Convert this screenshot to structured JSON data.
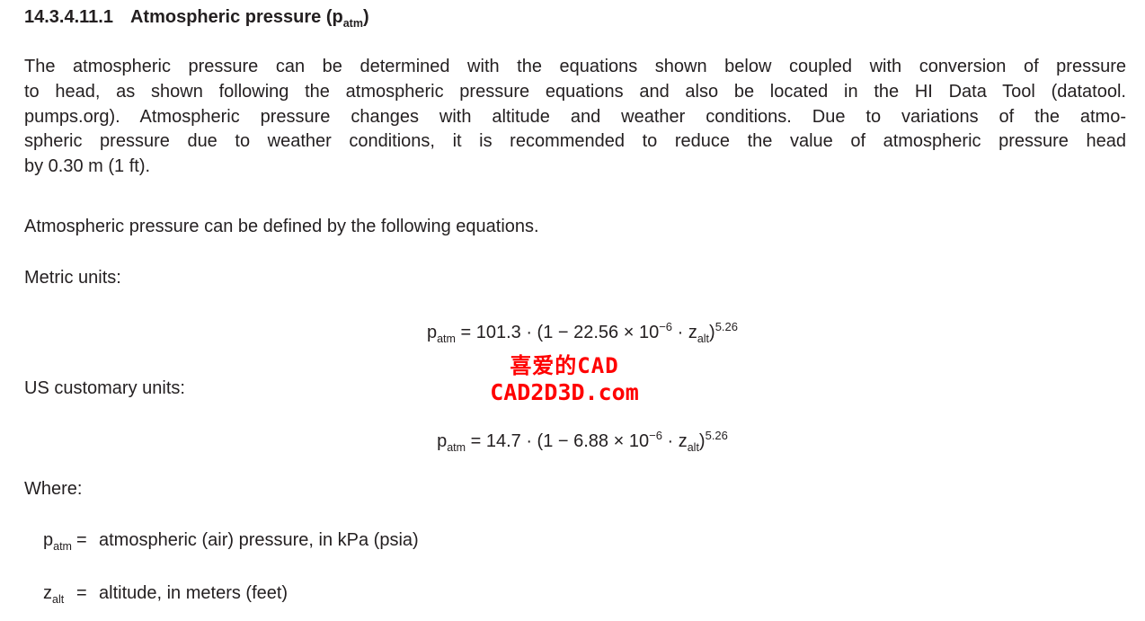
{
  "page": {
    "background": "#ffffff",
    "text_color": "#231f20"
  },
  "heading": {
    "number": "14.3.4.11.1",
    "title_main": "Atmospheric pressure (p",
    "title_sub": "atm",
    "title_close": ")"
  },
  "paragraph": {
    "lines": [
      "The atmospheric pressure can be determined with the equations shown below coupled with conversion of pressure",
      "to head, as shown following the atmospheric pressure equations and also be located in the HI Data Tool (datatool.",
      "pumps.org). Atmospheric pressure changes with altitude and weather conditions. Due to variations of the atmo-",
      "spheric pressure due to weather conditions, it is recommended to reduce the value of atmospheric pressure head",
      "by 0.30 m (1 ft)."
    ]
  },
  "intro_sentence": "Atmospheric pressure can be defined by the following equations.",
  "labels": {
    "metric": "Metric units:",
    "us_customary": "US customary units:",
    "where": "Where:"
  },
  "equation_metric": {
    "var_base": "p",
    "var_sub": "atm",
    "body_1": " = 101.3 · (1 − 22.56 × 10",
    "exponent_1": "−6",
    "body_2": " · z",
    "z_sub": "alt",
    "body_3": ")",
    "exponent_2": "5.26"
  },
  "equation_us": {
    "var_base": "p",
    "var_sub": "atm",
    "body_1": " = 14.7 · (1 − 6.88 × 10",
    "exponent_1": "−6",
    "body_2": " · z",
    "z_sub": "alt",
    "body_3": ")",
    "exponent_2": "5.26"
  },
  "watermark": {
    "line1": "喜爱的CAD",
    "line2": "CAD2D3D.com",
    "color": "#ff0000"
  },
  "definitions": [
    {
      "base": "p",
      "sub": "atm",
      "equals": "=",
      "desc": "atmospheric (air) pressure, in kPa (psia)"
    },
    {
      "base": "z",
      "sub": "alt",
      "equals": "=",
      "desc": "altitude, in meters (feet)"
    }
  ]
}
